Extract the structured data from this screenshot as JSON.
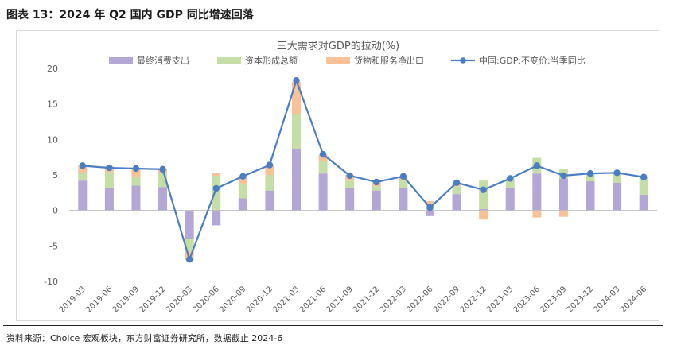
{
  "figure_title": "图表 13：2024 年 Q2 国内 GDP 同比增速回落",
  "source_note": "资料来源：Choice 宏观板块，东方财富证券研究所，数据截止 2024-6",
  "chart_data": {
    "type": "bar",
    "stacked": true,
    "title": "三大需求对GDP的拉动(%)",
    "xlabel": "",
    "ylabel": "",
    "ylim": [
      -10,
      20
    ],
    "yticks": [
      -10,
      -5,
      0,
      5,
      10,
      15,
      20
    ],
    "grid": false,
    "legend_position": "top",
    "categories": [
      "2019-03",
      "2019-06",
      "2019-09",
      "2019-12",
      "2020-03",
      "2020-06",
      "2020-09",
      "2020-12",
      "2021-03",
      "2021-06",
      "2021-09",
      "2021-12",
      "2022-03",
      "2022-06",
      "2022-09",
      "2022-12",
      "2023-03",
      "2023-06",
      "2023-09",
      "2023-12",
      "2024-03",
      "2024-06"
    ],
    "series": [
      {
        "name": "最终消费支出",
        "kind": "bar",
        "color": "#b4a7d6",
        "values": [
          4.2,
          3.2,
          3.5,
          3.3,
          -4.0,
          -2.1,
          1.7,
          2.8,
          8.6,
          5.2,
          3.2,
          2.8,
          3.2,
          -0.8,
          2.3,
          0.2,
          3.1,
          5.2,
          4.5,
          4.1,
          3.9,
          2.2
        ]
      },
      {
        "name": "资本形成总额",
        "kind": "bar",
        "color": "#c5dea5",
        "values": [
          1.1,
          2.2,
          1.2,
          2.0,
          -1.8,
          4.9,
          2.0,
          2.2,
          5.0,
          1.8,
          1.0,
          0.6,
          1.1,
          0.5,
          1.1,
          4.0,
          1.4,
          2.2,
          1.3,
          1.2,
          1.3,
          2.5
        ]
      },
      {
        "name": "货物和服务净出口",
        "kind": "bar",
        "color": "#f8c196",
        "values": [
          1.1,
          0.8,
          1.1,
          0.5,
          -1.2,
          0.4,
          1.2,
          1.5,
          4.5,
          0.9,
          0.8,
          0.6,
          0.5,
          0.8,
          0.5,
          -1.3,
          -0.1,
          -1.0,
          -0.9,
          -0.1,
          0.1,
          -0.1
        ]
      },
      {
        "name": "中国:GDP:不变价:当季同比",
        "kind": "line",
        "color": "#4a7ec2",
        "values": [
          6.3,
          6.0,
          5.9,
          5.8,
          -6.9,
          3.1,
          4.8,
          6.4,
          18.3,
          7.9,
          4.9,
          4.0,
          4.8,
          0.4,
          3.9,
          2.9,
          4.5,
          6.3,
          4.9,
          5.2,
          5.3,
          4.7
        ]
      }
    ]
  }
}
